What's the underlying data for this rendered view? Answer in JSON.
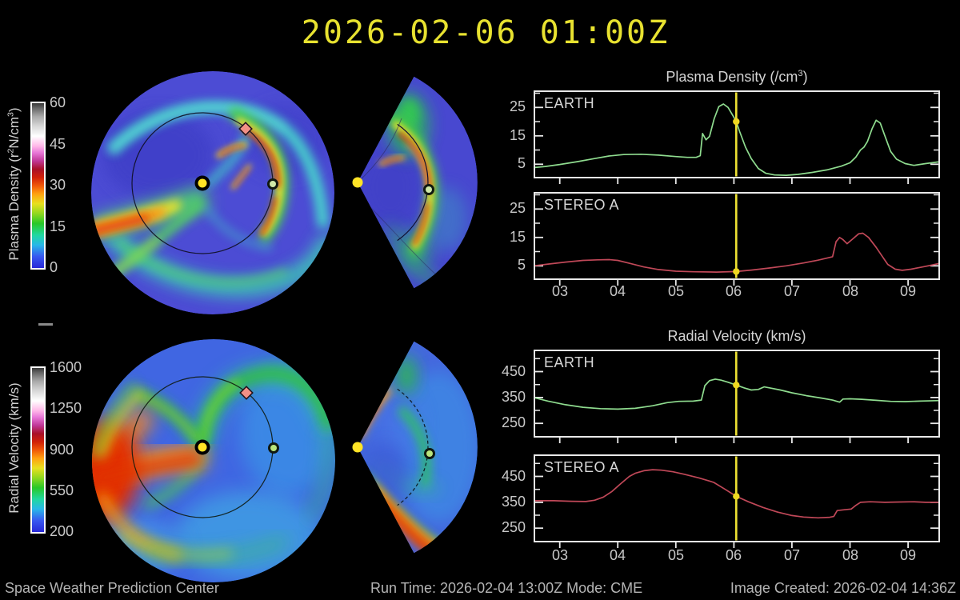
{
  "title": "2026-02-06 01:00Z",
  "colors": {
    "background": "#000000",
    "title_yellow": "#e8e230",
    "axis_text": "#c8c8c8",
    "plot_border": "#e8e8e8",
    "earth_series": "#8fdc8f",
    "stereo_a_series": "#c04858",
    "now_line": "#ece032",
    "now_marker": "#eed820",
    "sun_marker": "#ffe426",
    "earth_marker_fill": "#cfe8a8",
    "stereo_a_marker_fill": "#f29086"
  },
  "icons": {
    "sun_marker": "filled yellow circle with black ring",
    "earth_marker": "pale-green circle with black ring",
    "stereo_a_marker": "red diamond with black outline"
  },
  "colorbars": {
    "density": {
      "label_pre": "Plasma Density (r",
      "label_sup1": "2",
      "label_mid": "N/cm",
      "label_sup2": "3",
      "label_post": ")",
      "ticks": [
        "60",
        "45",
        "30",
        "15",
        "0"
      ]
    },
    "velocity": {
      "label": "Radial Velocity (km/s)",
      "ticks": [
        "1600",
        "1250",
        "900",
        "550",
        "200"
      ]
    }
  },
  "maps": {
    "density_disk": {
      "view": "equatorial-plane heliosphere",
      "quantity": "plasma density",
      "markers": [
        "sun",
        "earth",
        "stereo-a"
      ]
    },
    "density_wedge": {
      "view": "meridional-plane wedge",
      "quantity": "plasma density",
      "markers": [
        "sun",
        "earth"
      ]
    },
    "velocity_disk": {
      "view": "equatorial-plane heliosphere",
      "quantity": "radial velocity",
      "markers": [
        "sun",
        "earth",
        "stereo-a"
      ]
    },
    "velocity_wedge": {
      "view": "meridional-plane wedge",
      "quantity": "radial velocity",
      "markers": [
        "sun",
        "earth"
      ]
    }
  },
  "x_axis": {
    "values": [
      3,
      4,
      5,
      6,
      7,
      8,
      9
    ],
    "labels": [
      "03",
      "04",
      "05",
      "06",
      "07",
      "08",
      "09"
    ]
  },
  "chart_data": [
    {
      "type": "line",
      "group_title_pre": "Plasma Density (/cm",
      "group_title_sup": "3",
      "group_title_post": ")",
      "series_label": "EARTH",
      "color": "#8fdc8f",
      "xlim": [
        2.55,
        9.55
      ],
      "ylim": [
        0,
        31
      ],
      "yticks_labeled": [
        5,
        15,
        25
      ],
      "yticks_minor": [
        10,
        20,
        30
      ],
      "now_line_x": 6.04,
      "now_marker_y": 20,
      "points": [
        [
          2.55,
          3.8
        ],
        [
          2.75,
          4.2
        ],
        [
          3.0,
          4.9
        ],
        [
          3.3,
          5.9
        ],
        [
          3.6,
          7.0
        ],
        [
          3.85,
          7.9
        ],
        [
          4.1,
          8.4
        ],
        [
          4.4,
          8.5
        ],
        [
          4.7,
          8.2
        ],
        [
          5.0,
          7.7
        ],
        [
          5.2,
          7.4
        ],
        [
          5.35,
          7.4
        ],
        [
          5.42,
          8.0
        ],
        [
          5.46,
          15.8
        ],
        [
          5.52,
          13.6
        ],
        [
          5.58,
          14.8
        ],
        [
          5.66,
          21.0
        ],
        [
          5.74,
          25.3
        ],
        [
          5.82,
          26.2
        ],
        [
          5.9,
          25.0
        ],
        [
          6.0,
          21.5
        ],
        [
          6.04,
          20.0
        ],
        [
          6.1,
          16.5
        ],
        [
          6.2,
          11.0
        ],
        [
          6.3,
          7.0
        ],
        [
          6.42,
          3.5
        ],
        [
          6.55,
          1.8
        ],
        [
          6.7,
          1.2
        ],
        [
          6.9,
          1.1
        ],
        [
          7.1,
          1.4
        ],
        [
          7.35,
          2.1
        ],
        [
          7.6,
          3.0
        ],
        [
          7.85,
          4.3
        ],
        [
          8.0,
          5.5
        ],
        [
          8.1,
          7.5
        ],
        [
          8.18,
          10.0
        ],
        [
          8.24,
          11.0
        ],
        [
          8.3,
          13.0
        ],
        [
          8.38,
          17.5
        ],
        [
          8.45,
          20.5
        ],
        [
          8.52,
          19.5
        ],
        [
          8.6,
          15.0
        ],
        [
          8.7,
          9.5
        ],
        [
          8.8,
          6.8
        ],
        [
          8.95,
          5.2
        ],
        [
          9.1,
          4.6
        ],
        [
          9.3,
          5.2
        ],
        [
          9.55,
          5.9
        ]
      ]
    },
    {
      "type": "line",
      "series_label": "STEREO A",
      "color": "#c04858",
      "xlim": [
        2.55,
        9.55
      ],
      "ylim": [
        0,
        31
      ],
      "yticks_labeled": [
        5,
        15,
        25
      ],
      "yticks_minor": [
        10,
        20,
        30
      ],
      "now_line_x": 6.04,
      "now_marker_y": 3,
      "points": [
        [
          2.55,
          5.0
        ],
        [
          2.8,
          5.6
        ],
        [
          3.1,
          6.3
        ],
        [
          3.4,
          6.9
        ],
        [
          3.65,
          7.1
        ],
        [
          3.85,
          7.2
        ],
        [
          4.0,
          6.9
        ],
        [
          4.2,
          5.9
        ],
        [
          4.45,
          4.6
        ],
        [
          4.7,
          3.7
        ],
        [
          5.0,
          3.1
        ],
        [
          5.3,
          2.9
        ],
        [
          5.7,
          2.8
        ],
        [
          6.04,
          3.0
        ],
        [
          6.3,
          3.5
        ],
        [
          6.6,
          4.2
        ],
        [
          6.9,
          5.0
        ],
        [
          7.2,
          6.0
        ],
        [
          7.45,
          7.0
        ],
        [
          7.62,
          7.8
        ],
        [
          7.7,
          8.2
        ],
        [
          7.76,
          13.5
        ],
        [
          7.82,
          15.0
        ],
        [
          7.88,
          14.2
        ],
        [
          7.95,
          12.8
        ],
        [
          8.05,
          14.5
        ],
        [
          8.15,
          16.3
        ],
        [
          8.22,
          16.5
        ],
        [
          8.32,
          15.0
        ],
        [
          8.45,
          11.5
        ],
        [
          8.55,
          8.5
        ],
        [
          8.65,
          5.5
        ],
        [
          8.78,
          3.8
        ],
        [
          8.9,
          3.4
        ],
        [
          9.05,
          3.8
        ],
        [
          9.25,
          4.6
        ],
        [
          9.4,
          5.2
        ],
        [
          9.55,
          5.9
        ]
      ]
    },
    {
      "type": "line",
      "group_title": "Radial Velocity (km/s)",
      "series_label": "EARTH",
      "color": "#8fdc8f",
      "xlim": [
        2.55,
        9.55
      ],
      "ylim": [
        195,
        535
      ],
      "yticks_labeled": [
        250,
        350,
        450
      ],
      "yticks_minor": [
        200,
        300,
        400,
        500
      ],
      "now_line_x": 6.04,
      "now_marker_y": 398,
      "points": [
        [
          2.55,
          350
        ],
        [
          2.8,
          336
        ],
        [
          3.1,
          322
        ],
        [
          3.4,
          312
        ],
        [
          3.7,
          307
        ],
        [
          4.0,
          305
        ],
        [
          4.3,
          308
        ],
        [
          4.6,
          318
        ],
        [
          4.85,
          330
        ],
        [
          5.05,
          335
        ],
        [
          5.3,
          336
        ],
        [
          5.44,
          340
        ],
        [
          5.5,
          396
        ],
        [
          5.58,
          415
        ],
        [
          5.68,
          421
        ],
        [
          5.78,
          417
        ],
        [
          5.9,
          409
        ],
        [
          6.04,
          398
        ],
        [
          6.18,
          387
        ],
        [
          6.3,
          379
        ],
        [
          6.42,
          381
        ],
        [
          6.52,
          391
        ],
        [
          6.62,
          387
        ],
        [
          6.8,
          379
        ],
        [
          7.0,
          368
        ],
        [
          7.25,
          357
        ],
        [
          7.5,
          348
        ],
        [
          7.7,
          340
        ],
        [
          7.82,
          332
        ],
        [
          7.88,
          344
        ],
        [
          8.0,
          345
        ],
        [
          8.2,
          343
        ],
        [
          8.45,
          339
        ],
        [
          8.7,
          335
        ],
        [
          8.95,
          334
        ],
        [
          9.2,
          336
        ],
        [
          9.55,
          338
        ]
      ]
    },
    {
      "type": "line",
      "series_label": "STEREO A",
      "color": "#c04858",
      "xlim": [
        2.55,
        9.55
      ],
      "ylim": [
        195,
        535
      ],
      "yticks_labeled": [
        250,
        350,
        450
      ],
      "yticks_minor": [
        200,
        300,
        400,
        500
      ],
      "now_line_x": 6.04,
      "now_marker_y": 373,
      "points": [
        [
          2.55,
          356
        ],
        [
          2.9,
          356
        ],
        [
          3.2,
          354
        ],
        [
          3.45,
          353
        ],
        [
          3.6,
          358
        ],
        [
          3.75,
          370
        ],
        [
          3.9,
          392
        ],
        [
          4.05,
          422
        ],
        [
          4.2,
          450
        ],
        [
          4.3,
          462
        ],
        [
          4.45,
          472
        ],
        [
          4.6,
          476
        ],
        [
          4.75,
          474
        ],
        [
          4.95,
          468
        ],
        [
          5.15,
          458
        ],
        [
          5.4,
          444
        ],
        [
          5.65,
          427
        ],
        [
          5.85,
          400
        ],
        [
          6.04,
          373
        ],
        [
          6.25,
          352
        ],
        [
          6.5,
          330
        ],
        [
          6.75,
          312
        ],
        [
          7.0,
          299
        ],
        [
          7.2,
          293
        ],
        [
          7.45,
          290
        ],
        [
          7.65,
          292
        ],
        [
          7.72,
          295
        ],
        [
          7.78,
          318
        ],
        [
          7.9,
          321
        ],
        [
          8.02,
          324
        ],
        [
          8.1,
          338
        ],
        [
          8.18,
          350
        ],
        [
          8.35,
          352
        ],
        [
          8.6,
          350
        ],
        [
          8.85,
          351
        ],
        [
          9.1,
          352
        ],
        [
          9.3,
          350
        ],
        [
          9.55,
          350
        ]
      ]
    }
  ],
  "footer": {
    "left": "Space Weather Prediction Center",
    "center": "Run Time: 2026-02-04 13:00Z  Mode: CME",
    "right": "Image Created: 2026-02-04 14:36Z"
  }
}
